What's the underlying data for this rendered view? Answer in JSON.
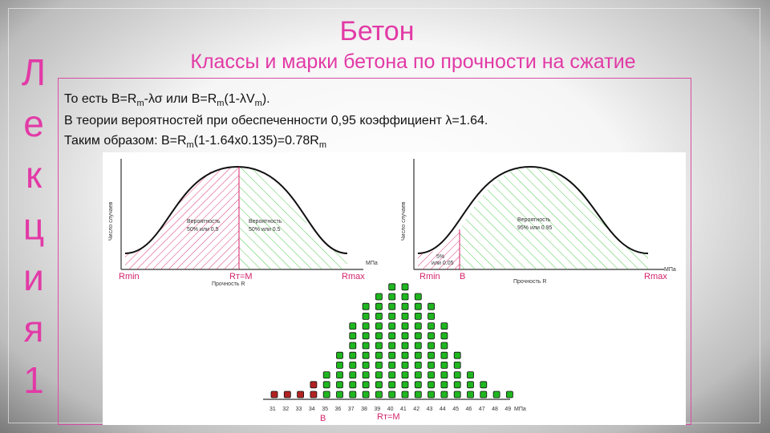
{
  "side_title": [
    "Л",
    "е",
    "к",
    "ц",
    "и",
    "я",
    "1"
  ],
  "title": "Бетон",
  "subtitle": "Классы и марки бетона по прочности на сжатие",
  "lines": {
    "l1": {
      "pre": "То есть  B=R",
      "s1": "m",
      "mid": "-λσ  или  B=R",
      "s2": "m",
      "mid2": "(1-λV",
      "s3": "m",
      "end": ")."
    },
    "l2": "В теории вероятностей при обеспеченности 0,95 коэффициент λ=1.64.",
    "l3": {
      "pre": "Таким образом: B=R",
      "s1": "m",
      "mid": "(1-1.64x0.135)=0.78R",
      "s2": "m"
    }
  },
  "chart1": {
    "ylabel": "Число случаев",
    "mpa": "МПа",
    "xlabel": "Прочность R",
    "left_area": {
      "t1": "Вероятность",
      "t2": "50% или 0.5"
    },
    "right_area": {
      "t1": "Вероятность",
      "t2": "50% или 0.5"
    },
    "rmin": "Rmin",
    "rm": "Rт=М",
    "rmax": "Rmax"
  },
  "chart2": {
    "ylabel": "Число случаев",
    "mpa": "МПа",
    "xlabel": "Прочность R",
    "right_area": {
      "t1": "Вероятность",
      "t2": "95% или 0.95"
    },
    "left_area": {
      "t1": "5%",
      "t2": "или 0.05"
    },
    "rmin": "Rmin",
    "b": "B",
    "rmax": "Rmax"
  },
  "chart3": {
    "ticks": [
      "31",
      "32",
      "33",
      "34",
      "35",
      "36",
      "37",
      "38",
      "39",
      "40",
      "41",
      "42",
      "43",
      "44",
      "45",
      "46",
      "47",
      "48",
      "49"
    ],
    "counts": [
      1,
      1,
      1,
      2,
      3,
      5,
      8,
      10,
      11,
      12,
      12,
      11,
      10,
      8,
      5,
      3,
      2,
      1,
      1
    ],
    "red_count": 4,
    "mpa": "МПа",
    "b": "B",
    "rm": "Rт=М",
    "colors": {
      "red": "#b22222",
      "green": "#1fb61f"
    }
  },
  "colors": {
    "accent": "#e23aa6",
    "red_hatch": "#d3246a",
    "green_hatch": "#3cc63c"
  }
}
